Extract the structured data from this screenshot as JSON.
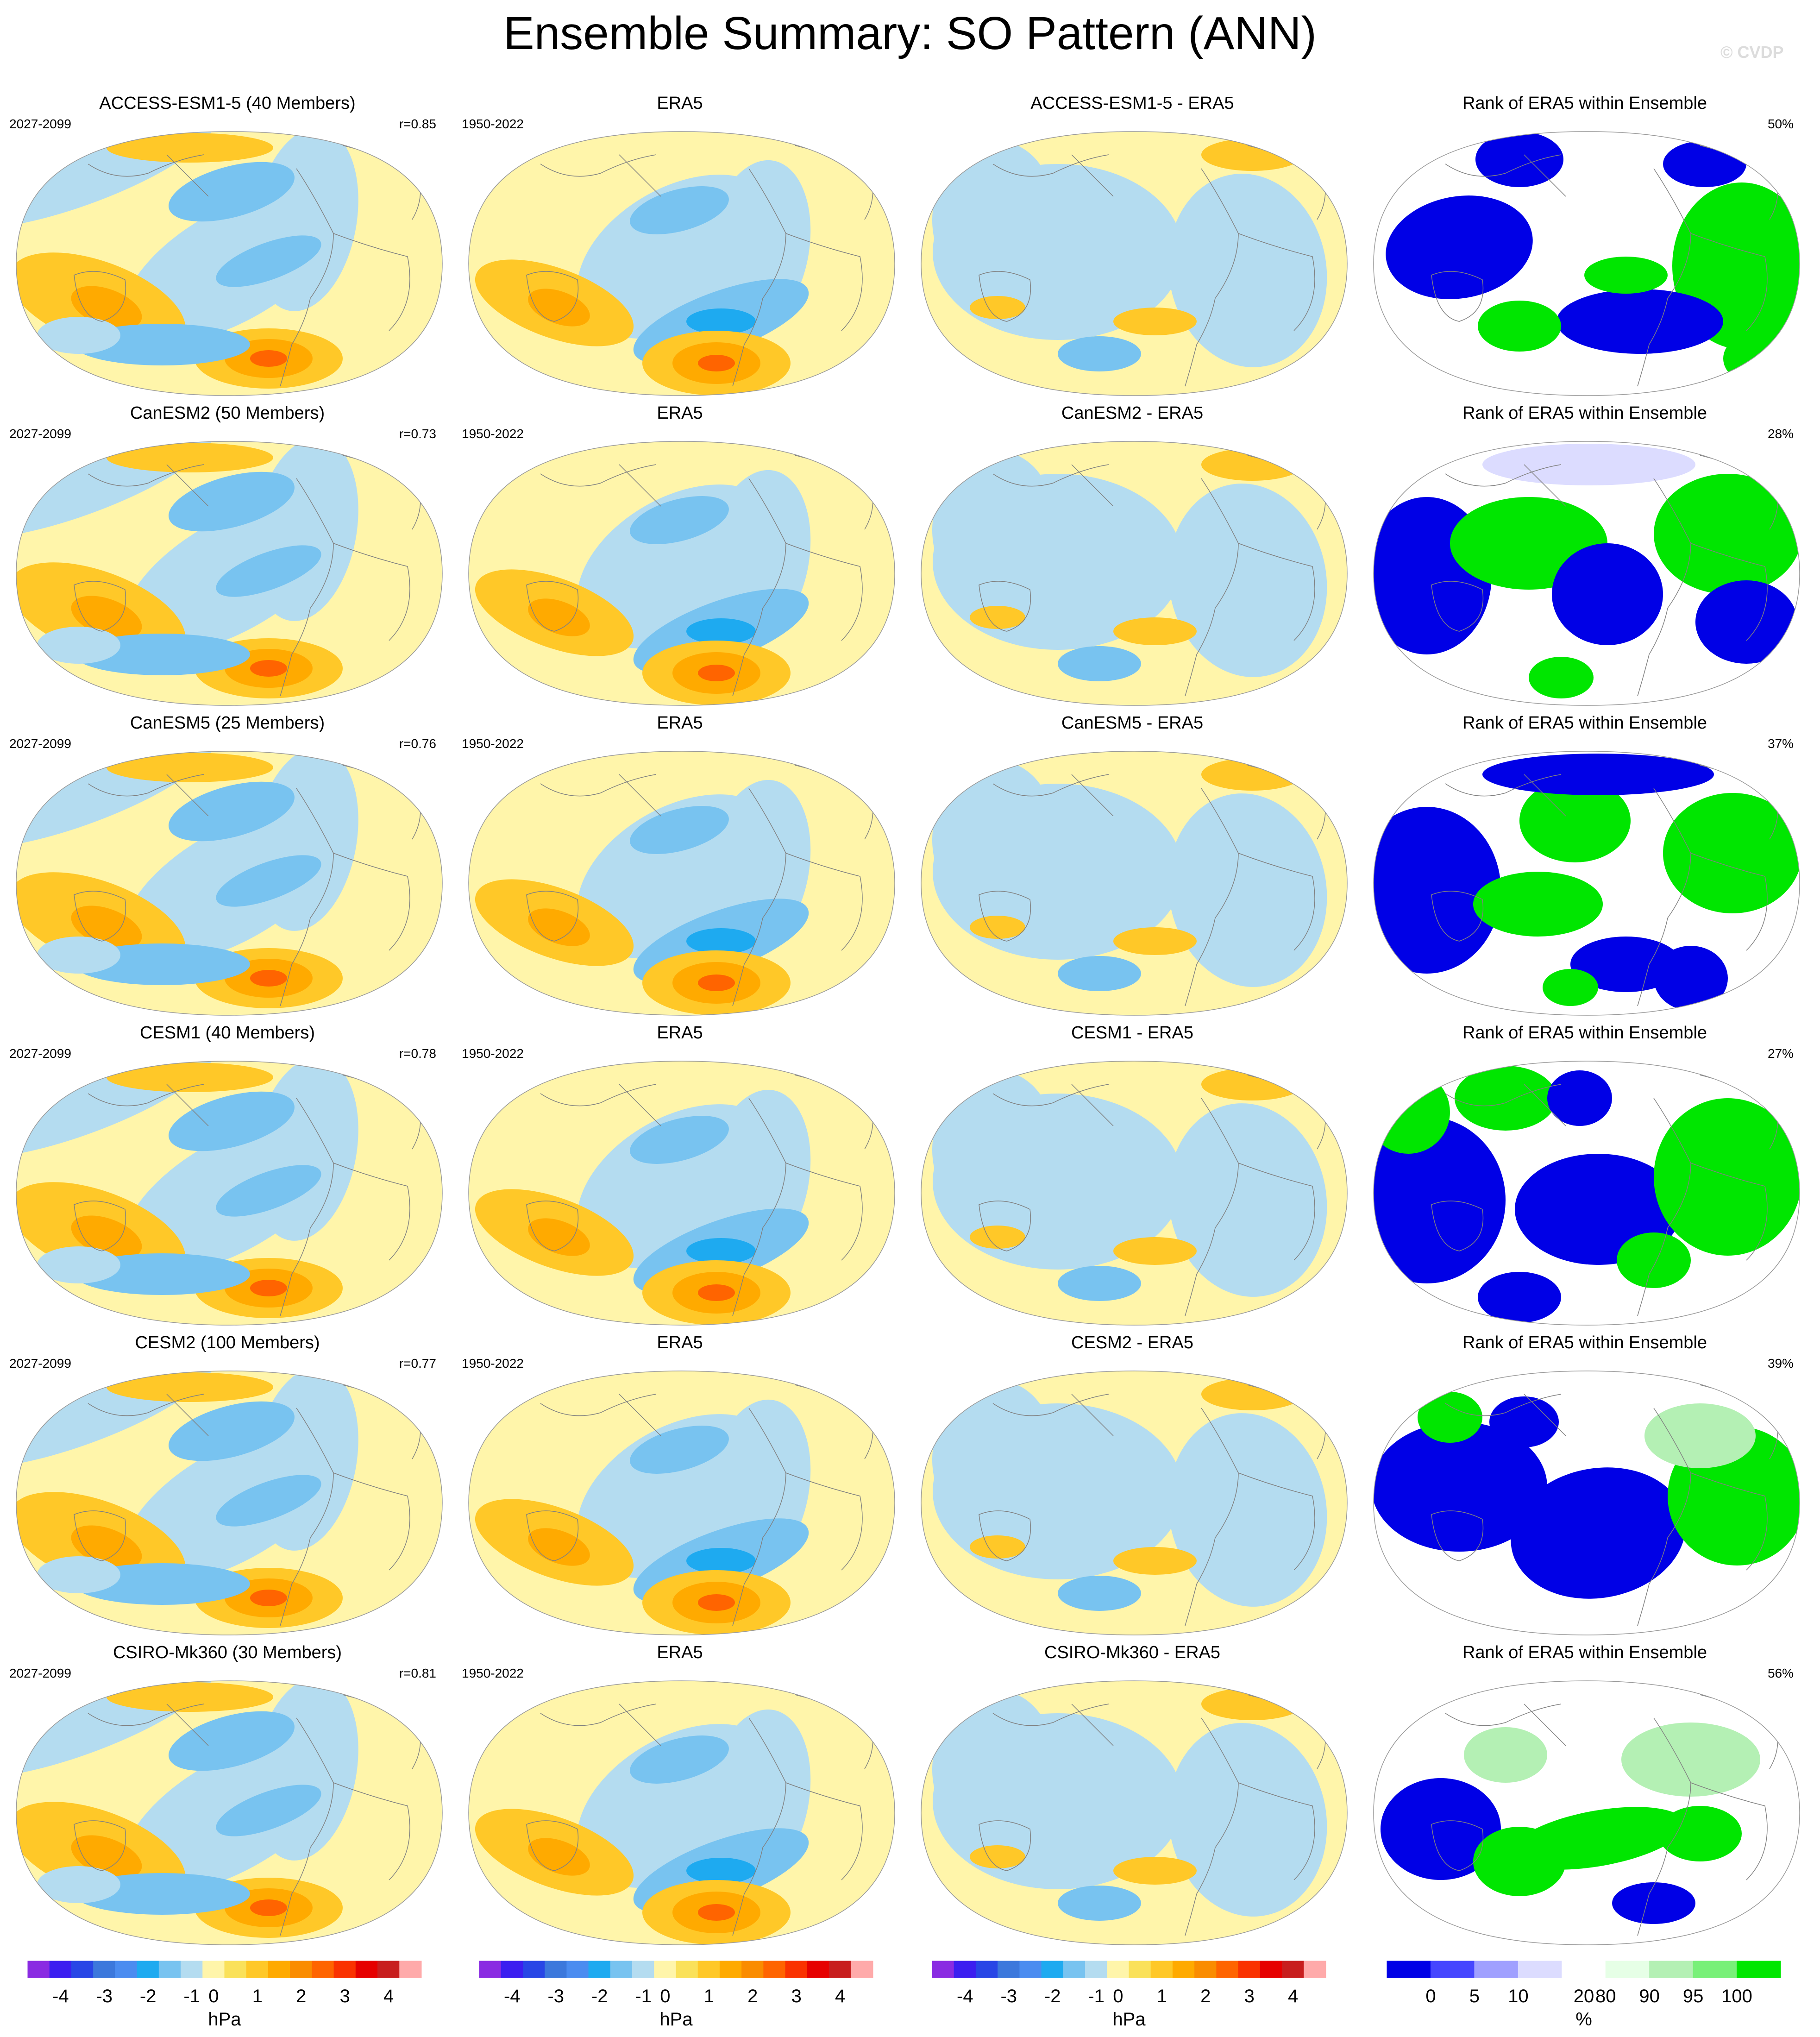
{
  "title": "Ensemble Summary: SO Pattern (ANN)",
  "watermark": "© CVDP",
  "rows": [
    {
      "model_title": "ACCESS-ESM1-5 (40 Members)",
      "model_years": "2027-2099",
      "corr": "r=0.85",
      "era_title": "ERA5",
      "era_years": "1950-2022",
      "diff_title": "ACCESS-ESM1-5 - ERA5",
      "rank_title": "Rank of ERA5 within Ensemble",
      "rank_pct": "50%"
    },
    {
      "model_title": "CanESM2 (50 Members)",
      "model_years": "2027-2099",
      "corr": "r=0.73",
      "era_title": "ERA5",
      "era_years": "1950-2022",
      "diff_title": "CanESM2 - ERA5",
      "rank_title": "Rank of ERA5 within Ensemble",
      "rank_pct": "28%"
    },
    {
      "model_title": "CanESM5 (25 Members)",
      "model_years": "2027-2099",
      "corr": "r=0.76",
      "era_title": "ERA5",
      "era_years": "1950-2022",
      "diff_title": "CanESM5 - ERA5",
      "rank_title": "Rank of ERA5 within Ensemble",
      "rank_pct": "37%"
    },
    {
      "model_title": "CESM1 (40 Members)",
      "model_years": "2027-2099",
      "corr": "r=0.78",
      "era_title": "ERA5",
      "era_years": "1950-2022",
      "diff_title": "CESM1 - ERA5",
      "rank_title": "Rank of ERA5 within Ensemble",
      "rank_pct": "27%"
    },
    {
      "model_title": "CESM2 (100 Members)",
      "model_years": "2027-2099",
      "corr": "r=0.77",
      "era_title": "ERA5",
      "era_years": "1950-2022",
      "diff_title": "CESM2 - ERA5",
      "rank_title": "Rank of ERA5 within Ensemble",
      "rank_pct": "39%"
    },
    {
      "model_title": "CSIRO-Mk360 (30 Members)",
      "model_years": "2027-2099",
      "corr": "r=0.81",
      "era_title": "ERA5",
      "era_years": "1950-2022",
      "diff_title": "CSIRO-Mk360 - ERA5",
      "rank_title": "Rank of ERA5 within Ensemble",
      "rank_pct": "56%"
    }
  ],
  "colorbars": {
    "pressure": {
      "unit": "hPa",
      "colors": [
        "#8a2be2",
        "#3c1ef0",
        "#2846e6",
        "#3c78dc",
        "#4b8cf0",
        "#1eaaf0",
        "#78c3f0",
        "#b4dcf0",
        "#fff5aa",
        "#fae15a",
        "#ffc828",
        "#ffaa00",
        "#fa8c00",
        "#ff6400",
        "#fa3200",
        "#e60000",
        "#c81e1e",
        "#ffaaaa"
      ],
      "tick_labels": [
        "-4",
        "-3",
        "-2",
        "-1",
        "0",
        "1",
        "2",
        "3",
        "4"
      ]
    },
    "rank": {
      "unit": "%",
      "colors": [
        "#0000e6",
        "#4646ff",
        "#a0a0ff",
        "#dcdcff",
        "#ffffff",
        "#e6ffe6",
        "#b4f0b4",
        "#78f078",
        "#00e600"
      ],
      "tick_labels": [
        "0",
        "5",
        "10",
        "20",
        "80",
        "90",
        "95",
        "100"
      ]
    }
  },
  "chart_data": [
    {
      "type": "heatmap",
      "panel": "ACCESS-ESM1-5 (40 Members)",
      "field": "SO pattern",
      "unit": "hPa",
      "range": [
        -4,
        4
      ],
      "r": 0.85,
      "rank_of_era5_pct": 50
    },
    {
      "type": "heatmap",
      "panel": "CanESM2 (50 Members)",
      "field": "SO pattern",
      "unit": "hPa",
      "range": [
        -4,
        4
      ],
      "r": 0.73,
      "rank_of_era5_pct": 28
    },
    {
      "type": "heatmap",
      "panel": "CanESM5 (25 Members)",
      "field": "SO pattern",
      "unit": "hPa",
      "range": [
        -4,
        4
      ],
      "r": 0.76,
      "rank_of_era5_pct": 37
    },
    {
      "type": "heatmap",
      "panel": "CESM1 (40 Members)",
      "field": "SO pattern",
      "unit": "hPa",
      "range": [
        -4,
        4
      ],
      "r": 0.78,
      "rank_of_era5_pct": 27
    },
    {
      "type": "heatmap",
      "panel": "CESM2 (100 Members)",
      "field": "SO pattern",
      "unit": "hPa",
      "range": [
        -4,
        4
      ],
      "r": 0.77,
      "rank_of_era5_pct": 39
    },
    {
      "type": "heatmap",
      "panel": "CSIRO-Mk360 (30 Members)",
      "field": "SO pattern",
      "unit": "hPa",
      "range": [
        -4,
        4
      ],
      "r": 0.81,
      "rank_of_era5_pct": 56
    }
  ]
}
